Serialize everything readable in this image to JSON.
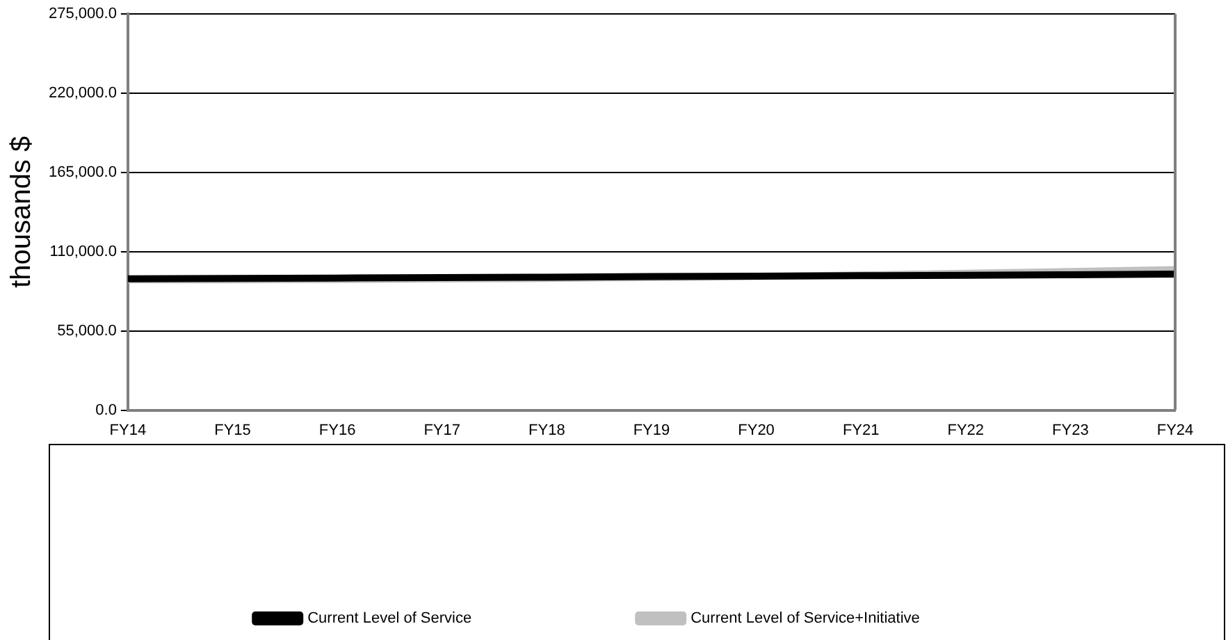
{
  "chart_data": {
    "type": "line",
    "ylabel": "thousands $",
    "categories": [
      "FY14",
      "FY15",
      "FY16",
      "FY17",
      "FY18",
      "FY19",
      "FY20",
      "FY21",
      "FY22",
      "FY23",
      "FY24"
    ],
    "series": [
      {
        "name": "Current Level of Service",
        "color": "#000000",
        "values": [
          91200,
          91400,
          91700,
          92000,
          92300,
          92700,
          93000,
          93300,
          93600,
          94000,
          94400
        ]
      },
      {
        "name": "Current Level of Service+Initiative",
        "color": "#c0c0c0",
        "values": [
          90400,
          90500,
          90700,
          91000,
          91400,
          92000,
          92800,
          93800,
          95000,
          96200,
          97600
        ]
      }
    ],
    "ylim": [
      0,
      275000
    ],
    "yticks": [
      {
        "value": 0,
        "label": "0.0"
      },
      {
        "value": 55000,
        "label": "55,000.0"
      },
      {
        "value": 110000,
        "label": "110,000.0"
      },
      {
        "value": 165000,
        "label": "165,000.0"
      },
      {
        "value": 220000,
        "label": "220,000.0"
      },
      {
        "value": 275000,
        "label": "275,000.0"
      }
    ],
    "grid": "y",
    "legend": "bottom",
    "marker": "none",
    "line_style": "solid"
  }
}
